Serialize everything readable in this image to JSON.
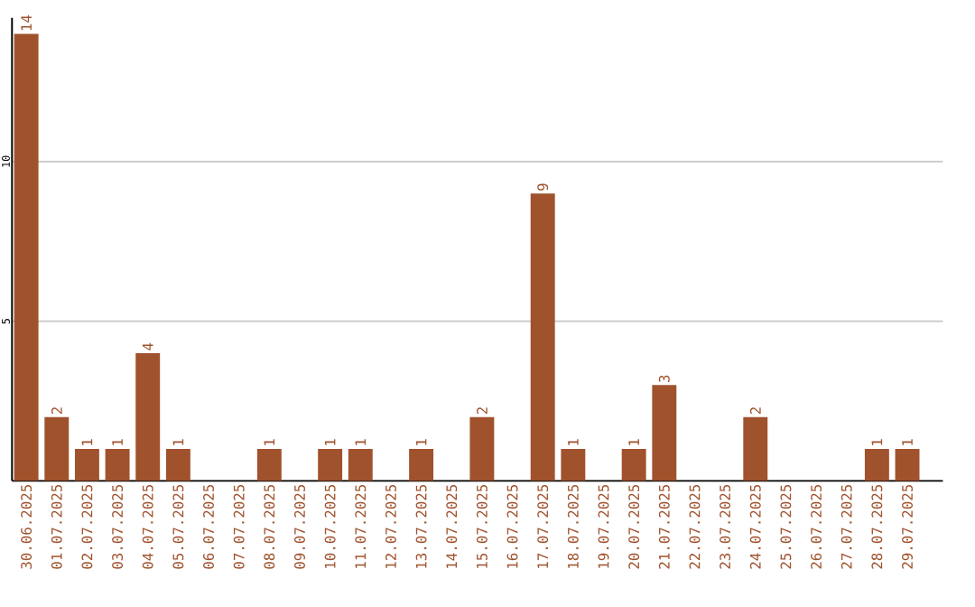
{
  "chart_data": {
    "type": "bar",
    "categories": [
      "30.06.2025",
      "01.07.2025",
      "02.07.2025",
      "03.07.2025",
      "04.07.2025",
      "05.07.2025",
      "06.07.2025",
      "07.07.2025",
      "08.07.2025",
      "09.07.2025",
      "10.07.2025",
      "11.07.2025",
      "12.07.2025",
      "13.07.2025",
      "14.07.2025",
      "15.07.2025",
      "16.07.2025",
      "17.07.2025",
      "18.07.2025",
      "19.07.2025",
      "20.07.2025",
      "21.07.2025",
      "22.07.2025",
      "23.07.2025",
      "24.07.2025",
      "25.07.2025",
      "26.07.2025",
      "27.07.2025",
      "28.07.2025",
      "29.07.2025"
    ],
    "values": [
      14,
      2,
      1,
      1,
      4,
      1,
      0,
      0,
      1,
      0,
      1,
      1,
      0,
      1,
      0,
      2,
      0,
      9,
      1,
      0,
      1,
      3,
      0,
      0,
      2,
      0,
      0,
      0,
      1,
      1
    ],
    "value_labels": [
      "14",
      "2",
      "1",
      "1",
      "4",
      "1",
      null,
      null,
      "1",
      null,
      "1",
      "1",
      null,
      "1",
      null,
      "2",
      null,
      "9",
      "1",
      null,
      "1",
      "3",
      null,
      null,
      "2",
      null,
      null,
      null,
      "1",
      "1"
    ],
    "color": "#a0522d",
    "ylim": [
      0,
      14.5
    ],
    "yticks": [
      5,
      10
    ],
    "grid": "y"
  }
}
